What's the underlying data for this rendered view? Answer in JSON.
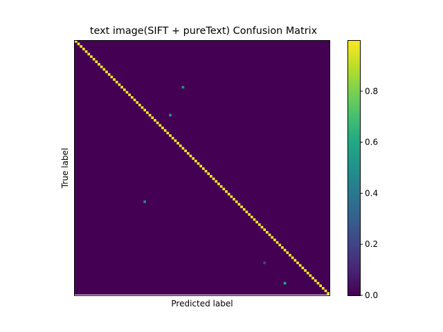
{
  "chart_data": {
    "type": "heatmap",
    "title": "text image(SIFT + pureText) Confusion Matrix",
    "xlabel": "Predicted label",
    "ylabel": "True label",
    "n_classes": 100,
    "diagonal_value": 1.0,
    "off_diagonal_cells": [
      {
        "row": 18,
        "col": 42,
        "value": 0.5
      },
      {
        "row": 29,
        "col": 37,
        "value": 0.5
      },
      {
        "row": 63,
        "col": 27,
        "value": 0.5
      },
      {
        "row": 87,
        "col": 74,
        "value": 0.2
      },
      {
        "row": 95,
        "col": 82,
        "value": 0.6
      }
    ],
    "background_value": 0.0,
    "colorbar": {
      "colormap": "viridis",
      "range": [
        0.0,
        1.0
      ],
      "ticks": [
        0.0,
        0.2,
        0.4,
        0.6,
        0.8
      ],
      "tick_labels": [
        "0.0",
        "0.2",
        "0.4",
        "0.6",
        "0.8"
      ]
    },
    "x_ticks": "none",
    "y_ticks": "none"
  }
}
